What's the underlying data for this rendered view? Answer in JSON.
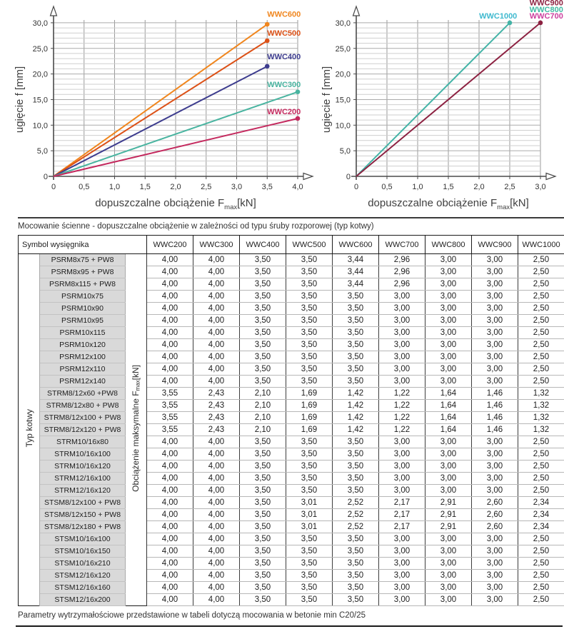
{
  "notes": {
    "table_caption": "Mocowanie ścienne - dopuszczalne obciążenie w zależności od typu śruby rozporowej (typ kotwy)",
    "footer_note": "Parametry wytrzymałościowe przedstawione w tabeli dotyczą mocowania w betonie min C20/25"
  },
  "chart_data": [
    {
      "type": "line",
      "title": "",
      "xlabel": {
        "prefix": "dopuszczalne obciążenie F",
        "sub": "max",
        "suffix": "[kN]"
      },
      "ylabel": "ugięcie f [mm]",
      "xlim": [
        0,
        4.0
      ],
      "ylim": [
        0,
        30
      ],
      "xticks": [
        0,
        0.5,
        1,
        1.5,
        2,
        2.5,
        3,
        3.5,
        4
      ],
      "xtick_labels": [
        "0",
        "0,5",
        "1,0",
        "1,5",
        "2,0",
        "2,5",
        "3,0",
        "3,5",
        "4,0"
      ],
      "yticks": [
        0,
        5,
        10,
        15,
        20,
        25,
        30
      ],
      "ytick_labels": [
        "0",
        "5,0",
        "10,0",
        "15,0",
        "20,0",
        "25,0",
        "30,0"
      ],
      "grid": {
        "x_step": 0.5,
        "y_step": 1,
        "on": true
      },
      "legend_position": "above-line-endpoints",
      "series": [
        {
          "name": "WWC600",
          "color": "#F0861E",
          "points": [
            [
              0,
              0
            ],
            [
              3.5,
              29.7
            ]
          ]
        },
        {
          "name": "WWC500",
          "color": "#DC5117",
          "points": [
            [
              0,
              0
            ],
            [
              3.5,
              26.5
            ]
          ]
        },
        {
          "name": "WWC400",
          "color": "#3D3C8E",
          "points": [
            [
              0,
              0
            ],
            [
              3.5,
              21.5
            ]
          ]
        },
        {
          "name": "WWC300",
          "color": "#49B4A0",
          "points": [
            [
              0,
              0
            ],
            [
              4.0,
              16.5
            ]
          ]
        },
        {
          "name": "WWC200",
          "color": "#C4295E",
          "points": [
            [
              0,
              0
            ],
            [
              4.0,
              11.3
            ]
          ]
        }
      ],
      "labels": [
        {
          "text": "WWC600",
          "color": "#F0861E",
          "x": 4.05,
          "y": 31.2,
          "anchor": "end"
        },
        {
          "text": "WWC500",
          "color": "#DC5117",
          "x": 4.05,
          "y": 27.5,
          "anchor": "end"
        },
        {
          "text": "WWC400",
          "color": "#3D3C8E",
          "x": 4.05,
          "y": 22.9,
          "anchor": "end"
        },
        {
          "text": "WWC300",
          "color": "#49B4A0",
          "x": 4.05,
          "y": 17.4,
          "anchor": "end"
        },
        {
          "text": "WWC200",
          "color": "#C4295E",
          "x": 4.05,
          "y": 12.1,
          "anchor": "end"
        }
      ]
    },
    {
      "type": "line",
      "title": "",
      "xlabel": {
        "prefix": "dopuszczalne obciążenie F",
        "sub": "max",
        "suffix": "[kN]"
      },
      "ylabel": "ugięcie f [mm]",
      "xlim": [
        0,
        3.0
      ],
      "ylim": [
        0,
        30
      ],
      "xticks": [
        0,
        0.5,
        1,
        1.5,
        2,
        2.5,
        3
      ],
      "xtick_labels": [
        "0",
        "0,5",
        "1,0",
        "1,5",
        "2,0",
        "2,5",
        "3,0"
      ],
      "yticks": [
        0,
        5,
        10,
        15,
        20,
        25,
        30
      ],
      "ytick_labels": [
        "0",
        "5,0",
        "10,0",
        "15,0",
        "20,0",
        "25,0",
        "30,0"
      ],
      "grid": {
        "x_step": 0.5,
        "y_step": 1,
        "on": true
      },
      "legend_position": "top-right",
      "series": [
        {
          "name": "WWC1000",
          "color": "#43B3A6",
          "points": [
            [
              0,
              0
            ],
            [
              2.5,
              30
            ]
          ]
        },
        {
          "name": "WWC700",
          "color": "#8C2141",
          "points": [
            [
              0,
              0
            ],
            [
              3.0,
              30
            ]
          ]
        }
      ],
      "labels": [
        {
          "text": "WWC900",
          "color": "#8C2141",
          "x": 3.37,
          "y": 33.4,
          "anchor": "end"
        },
        {
          "text": "WWC800",
          "color": "#3FBCA4",
          "x": 3.37,
          "y": 32.1,
          "anchor": "end"
        },
        {
          "text": "WWC1000",
          "color": "#3FB9CF",
          "x": 2.62,
          "y": 30.8,
          "anchor": "end"
        },
        {
          "text": "WWC700",
          "color": "#CC3F9E",
          "x": 3.37,
          "y": 30.8,
          "anchor": "end"
        }
      ]
    }
  ],
  "table": {
    "corner_header": "Symbol wysięgnika",
    "col_headers": [
      "WWC200",
      "WWC300",
      "WWC400",
      "WWC500",
      "WWC600",
      "WWC700",
      "WWC800",
      "WWC900",
      "WWC1000"
    ],
    "row_group_label": "Typ kotwy",
    "value_label": {
      "prefix": "Obciążenie maksymalne F",
      "sub": "max",
      "suffix": "[kN]"
    },
    "rows": [
      {
        "name": "PSRM8x75 + PW8",
        "values": [
          "4,00",
          "4,00",
          "3,50",
          "3,50",
          "3,44",
          "2,96",
          "3,00",
          "3,00",
          "2,50"
        ]
      },
      {
        "name": "PSRM8x95 + PW8",
        "values": [
          "4,00",
          "4,00",
          "3,50",
          "3,50",
          "3,44",
          "2,96",
          "3,00",
          "3,00",
          "2,50"
        ]
      },
      {
        "name": "PSRM8x115 + PW8",
        "values": [
          "4,00",
          "4,00",
          "3,50",
          "3,50",
          "3,44",
          "2,96",
          "3,00",
          "3,00",
          "2,50"
        ]
      },
      {
        "name": "PSRM10x75",
        "values": [
          "4,00",
          "4,00",
          "3,50",
          "3,50",
          "3,50",
          "3,00",
          "3,00",
          "3,00",
          "2,50"
        ]
      },
      {
        "name": "PSRM10x90",
        "values": [
          "4,00",
          "4,00",
          "3,50",
          "3,50",
          "3,50",
          "3,00",
          "3,00",
          "3,00",
          "2,50"
        ]
      },
      {
        "name": "PSRM10x95",
        "values": [
          "4,00",
          "4,00",
          "3,50",
          "3,50",
          "3,50",
          "3,00",
          "3,00",
          "3,00",
          "2,50"
        ]
      },
      {
        "name": "PSRM10x115",
        "values": [
          "4,00",
          "4,00",
          "3,50",
          "3,50",
          "3,50",
          "3,00",
          "3,00",
          "3,00",
          "2,50"
        ]
      },
      {
        "name": "PSRM10x120",
        "values": [
          "4,00",
          "4,00",
          "3,50",
          "3,50",
          "3,50",
          "3,00",
          "3,00",
          "3,00",
          "2,50"
        ]
      },
      {
        "name": "PSRM12x100",
        "values": [
          "4,00",
          "4,00",
          "3,50",
          "3,50",
          "3,50",
          "3,00",
          "3,00",
          "3,00",
          "2,50"
        ]
      },
      {
        "name": "PSRM12x110",
        "values": [
          "4,00",
          "4,00",
          "3,50",
          "3,50",
          "3,50",
          "3,00",
          "3,00",
          "3,00",
          "2,50"
        ]
      },
      {
        "name": "PSRM12x140",
        "values": [
          "4,00",
          "4,00",
          "3,50",
          "3,50",
          "3,50",
          "3,00",
          "3,00",
          "3,00",
          "2,50"
        ]
      },
      {
        "name": "STRM8/12x60 +PW8",
        "values": [
          "3,55",
          "2,43",
          "2,10",
          "1,69",
          "1,42",
          "1,22",
          "1,64",
          "1,46",
          "1,32"
        ]
      },
      {
        "name": "STRM8/12x80 + PW8",
        "values": [
          "3,55",
          "2,43",
          "2,10",
          "1,69",
          "1,42",
          "1,22",
          "1,64",
          "1,46",
          "1,32"
        ]
      },
      {
        "name": "STRM8/12x100 + PW8",
        "values": [
          "3,55",
          "2,43",
          "2,10",
          "1,69",
          "1,42",
          "1,22",
          "1,64",
          "1,46",
          "1,32"
        ]
      },
      {
        "name": "STRM8/12x120 + PW8",
        "values": [
          "3,55",
          "2,43",
          "2,10",
          "1,69",
          "1,42",
          "1,22",
          "1,64",
          "1,46",
          "1,32"
        ]
      },
      {
        "name": "STRM10/16x80",
        "values": [
          "4,00",
          "4,00",
          "3,50",
          "3,50",
          "3,50",
          "3,00",
          "3,00",
          "3,00",
          "2,50"
        ]
      },
      {
        "name": "STRM10/16x100",
        "values": [
          "4,00",
          "4,00",
          "3,50",
          "3,50",
          "3,50",
          "3,00",
          "3,00",
          "3,00",
          "2,50"
        ]
      },
      {
        "name": "STRM10/16x120",
        "values": [
          "4,00",
          "4,00",
          "3,50",
          "3,50",
          "3,50",
          "3,00",
          "3,00",
          "3,00",
          "2,50"
        ]
      },
      {
        "name": "STRM12/16x100",
        "values": [
          "4,00",
          "4,00",
          "3,50",
          "3,50",
          "3,50",
          "3,00",
          "3,00",
          "3,00",
          "2,50"
        ]
      },
      {
        "name": "STRM12/16x120",
        "values": [
          "4,00",
          "4,00",
          "3,50",
          "3,50",
          "3,50",
          "3,00",
          "3,00",
          "3,00",
          "2,50"
        ]
      },
      {
        "name": "STSM8/12x100 + PW8",
        "values": [
          "4,00",
          "4,00",
          "3,50",
          "3,01",
          "2,52",
          "2,17",
          "2,91",
          "2,60",
          "2,34"
        ]
      },
      {
        "name": "STSM8/12x150 + PW8",
        "values": [
          "4,00",
          "4,00",
          "3,50",
          "3,01",
          "2,52",
          "2,17",
          "2,91",
          "2,60",
          "2,34"
        ]
      },
      {
        "name": "STSM8/12x180 + PW8",
        "values": [
          "4,00",
          "4,00",
          "3,50",
          "3,01",
          "2,52",
          "2,17",
          "2,91",
          "2,60",
          "2,34"
        ]
      },
      {
        "name": "STSM10/16x100",
        "values": [
          "4,00",
          "4,00",
          "3,50",
          "3,50",
          "3,50",
          "3,00",
          "3,00",
          "3,00",
          "2,50"
        ]
      },
      {
        "name": "STSM10/16x150",
        "values": [
          "4,00",
          "4,00",
          "3,50",
          "3,50",
          "3,50",
          "3,00",
          "3,00",
          "3,00",
          "2,50"
        ]
      },
      {
        "name": "STSM10/16x210",
        "values": [
          "4,00",
          "4,00",
          "3,50",
          "3,50",
          "3,50",
          "3,00",
          "3,00",
          "3,00",
          "2,50"
        ]
      },
      {
        "name": "STSM12/16x120",
        "values": [
          "4,00",
          "4,00",
          "3,50",
          "3,50",
          "3,50",
          "3,00",
          "3,00",
          "3,00",
          "2,50"
        ]
      },
      {
        "name": "STSM12/16x160",
        "values": [
          "4,00",
          "4,00",
          "3,50",
          "3,50",
          "3,50",
          "3,00",
          "3,00",
          "3,00",
          "2,50"
        ]
      },
      {
        "name": "STSM12/16x200",
        "values": [
          "4,00",
          "4,00",
          "3,50",
          "3,50",
          "3,50",
          "3,00",
          "3,00",
          "3,00",
          "2,50"
        ]
      }
    ]
  }
}
